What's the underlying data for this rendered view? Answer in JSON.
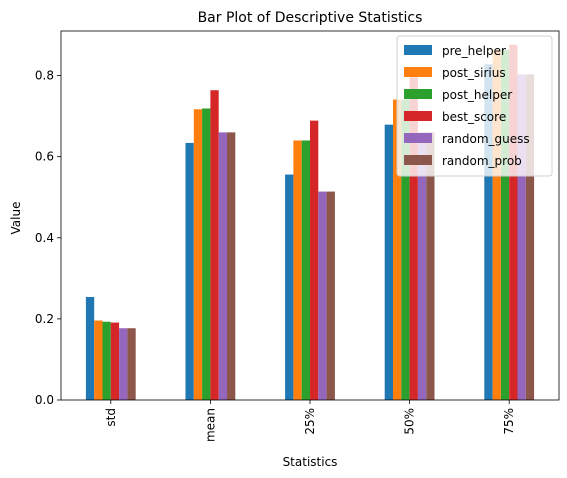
{
  "chart_data": {
    "type": "bar",
    "title": "Bar Plot of Descriptive Statistics",
    "xlabel": "Statistics",
    "ylabel": "Value",
    "ylim": [
      0,
      0.91
    ],
    "yticks": [
      "0.0",
      "0.2",
      "0.4",
      "0.6",
      "0.8"
    ],
    "ytick_values": [
      0,
      0.2,
      0.4,
      0.6,
      0.8
    ],
    "categories": [
      "std",
      "mean",
      "25%",
      "50%",
      "75%"
    ],
    "grid": false,
    "legend_position": "top-right",
    "series": [
      {
        "name": "pre_helper",
        "color": "#1f77b4",
        "values": [
          0.254,
          0.634,
          0.556,
          0.679,
          0.828
        ]
      },
      {
        "name": "post_sirius",
        "color": "#ff7f0e",
        "values": [
          0.196,
          0.717,
          0.64,
          0.741,
          0.864
        ]
      },
      {
        "name": "post_helper",
        "color": "#2ca02c",
        "values": [
          0.193,
          0.719,
          0.64,
          0.741,
          0.864
        ]
      },
      {
        "name": "best_score",
        "color": "#d62728",
        "values": [
          0.191,
          0.764,
          0.689,
          0.796,
          0.876
        ]
      },
      {
        "name": "random_guess",
        "color": "#9467bd",
        "values": [
          0.177,
          0.66,
          0.514,
          0.66,
          0.803
        ]
      },
      {
        "name": "random_prob",
        "color": "#8c564b",
        "values": [
          0.177,
          0.66,
          0.514,
          0.66,
          0.803
        ]
      }
    ]
  }
}
